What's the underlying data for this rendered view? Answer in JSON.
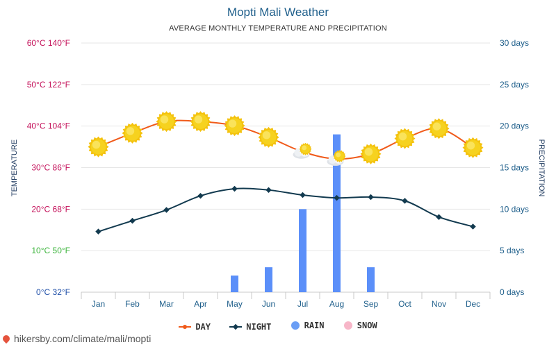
{
  "header": {
    "title": "Mopti Mali Weather",
    "subtitle": "AVERAGE MONTHLY TEMPERATURE AND PRECIPITATION"
  },
  "footer": {
    "url": "hikersby.com/climate/mali/mopti"
  },
  "colors": {
    "day": "#f05a1a",
    "night": "#123a4f",
    "rain": "#5b8ff9",
    "snow": "#f7b6c8",
    "sun": "#f6d21f"
  },
  "chart_data": {
    "type": "line",
    "categories": [
      "Jan",
      "Feb",
      "Mar",
      "Apr",
      "May",
      "Jun",
      "Jul",
      "Aug",
      "Sep",
      "Oct",
      "Nov",
      "Dec"
    ],
    "left_axis": {
      "label": "TEMPERATURE",
      "ticks": [
        {
          "value": 0,
          "text": "0°C 32°F",
          "color": "#1f4fa8"
        },
        {
          "value": 10,
          "text": "10°C 50°F",
          "color": "#3cb43c"
        },
        {
          "value": 20,
          "text": "20°C 68°F",
          "color": "#c4115a"
        },
        {
          "value": 30,
          "text": "30°C 86°F",
          "color": "#c4115a"
        },
        {
          "value": 40,
          "text": "40°C 104°F",
          "color": "#c4115a"
        },
        {
          "value": 50,
          "text": "50°C 122°F",
          "color": "#c4115a"
        },
        {
          "value": 60,
          "text": "60°C 140°F",
          "color": "#c4115a"
        }
      ],
      "ylim": [
        0,
        60
      ]
    },
    "right_axis": {
      "label": "PRECIPITATION",
      "ticks": [
        "0 days",
        "5 days",
        "10 days",
        "15 days",
        "20 days",
        "25 days",
        "30 days"
      ],
      "ylim": [
        0,
        30
      ]
    },
    "series": [
      {
        "name": "DAY",
        "type": "line",
        "axis": "left",
        "values": [
          35,
          38.3,
          41.1,
          41.1,
          40.1,
          37.3,
          33.8,
          32.1,
          33.3,
          37,
          39.4,
          34.8
        ]
      },
      {
        "name": "NIGHT",
        "type": "line",
        "axis": "left",
        "values": [
          14.6,
          17.2,
          19.8,
          23.2,
          24.9,
          24.6,
          23.4,
          22.7,
          22.9,
          22.0,
          18.1,
          15.8
        ]
      },
      {
        "name": "RAIN",
        "type": "bar",
        "axis": "right",
        "values": [
          0,
          0,
          0,
          0,
          2,
          3,
          10,
          19,
          3,
          0,
          0,
          0
        ]
      },
      {
        "name": "SNOW",
        "type": "bar",
        "axis": "right",
        "values": [
          0,
          0,
          0,
          0,
          0,
          0,
          0,
          0,
          0,
          0,
          0,
          0
        ]
      }
    ],
    "day_icons": [
      "sun",
      "sun",
      "sun",
      "sun",
      "sun",
      "sun",
      "partly-cloudy",
      "partly-cloudy",
      "sun",
      "sun",
      "sun",
      "sun"
    ],
    "grid": true,
    "legend_position": "bottom"
  }
}
